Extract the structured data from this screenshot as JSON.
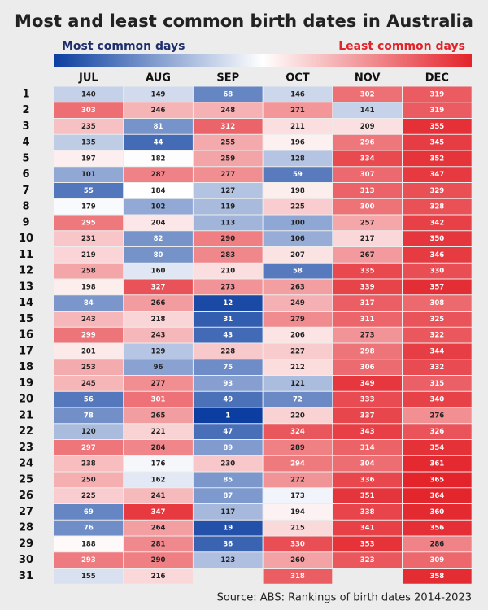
{
  "chart_data": {
    "type": "heatmap",
    "title": "Most and least common birth dates in Australia",
    "legend_low_label": "Most common days",
    "legend_high_label": "Least common days",
    "source": "Source: ABS: Rankings of birth dates 2014-2023",
    "colors": [
      "#0b3ea0",
      "#ffffff",
      "#e3232a"
    ],
    "colorlim": [
      1,
      366
    ],
    "legend_low_color": "#1f2f6e",
    "legend_high_color": "#e3232a",
    "columns": [
      "JUL",
      "AUG",
      "SEP",
      "OCT",
      "NOV",
      "DEC"
    ],
    "rows": [
      1,
      2,
      3,
      4,
      5,
      6,
      7,
      8,
      9,
      10,
      11,
      12,
      13,
      14,
      15,
      16,
      17,
      18,
      19,
      20,
      21,
      22,
      23,
      24,
      25,
      26,
      27,
      28,
      29,
      30,
      31
    ],
    "values": [
      [
        140,
        149,
        68,
        146,
        302,
        319
      ],
      [
        303,
        246,
        248,
        271,
        141,
        319
      ],
      [
        235,
        81,
        312,
        211,
        209,
        355
      ],
      [
        135,
        44,
        255,
        196,
        296,
        345
      ],
      [
        197,
        182,
        259,
        128,
        334,
        352
      ],
      [
        101,
        287,
        277,
        59,
        307,
        347
      ],
      [
        55,
        184,
        127,
        198,
        313,
        329
      ],
      [
        179,
        102,
        119,
        225,
        300,
        328
      ],
      [
        295,
        204,
        113,
        100,
        257,
        342
      ],
      [
        231,
        82,
        290,
        106,
        217,
        350
      ],
      [
        219,
        80,
        283,
        207,
        267,
        346
      ],
      [
        258,
        160,
        210,
        58,
        335,
        330
      ],
      [
        198,
        327,
        273,
        263,
        339,
        357
      ],
      [
        84,
        266,
        12,
        249,
        317,
        308
      ],
      [
        243,
        218,
        31,
        279,
        311,
        325
      ],
      [
        299,
        243,
        43,
        206,
        273,
        322
      ],
      [
        201,
        129,
        228,
        227,
        298,
        344
      ],
      [
        253,
        96,
        75,
        212,
        306,
        332
      ],
      [
        245,
        277,
        93,
        121,
        349,
        315
      ],
      [
        56,
        301,
        49,
        72,
        333,
        340
      ],
      [
        78,
        265,
        1,
        220,
        337,
        276
      ],
      [
        120,
        221,
        47,
        324,
        343,
        326
      ],
      [
        297,
        284,
        89,
        289,
        314,
        354
      ],
      [
        238,
        176,
        230,
        294,
        304,
        361
      ],
      [
        250,
        162,
        85,
        272,
        336,
        365
      ],
      [
        225,
        241,
        87,
        173,
        351,
        364
      ],
      [
        69,
        347,
        117,
        194,
        338,
        360
      ],
      [
        76,
        264,
        19,
        215,
        341,
        356
      ],
      [
        188,
        281,
        36,
        330,
        353,
        286
      ],
      [
        293,
        290,
        123,
        260,
        323,
        309
      ],
      [
        155,
        216,
        null,
        318,
        null,
        358
      ]
    ]
  }
}
